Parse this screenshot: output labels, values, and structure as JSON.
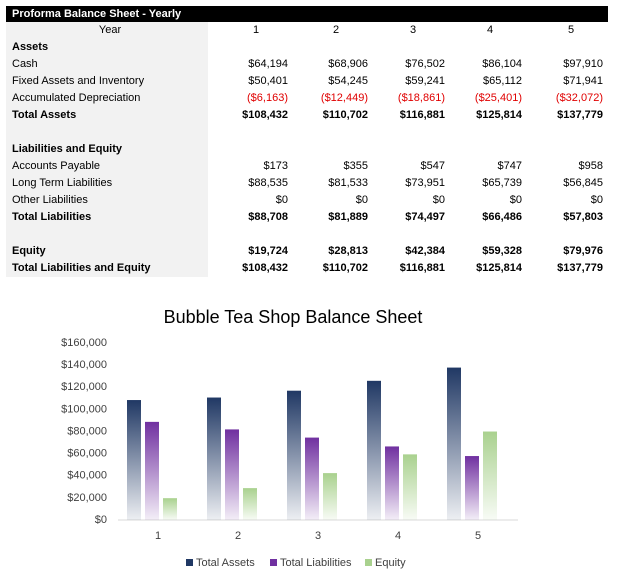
{
  "table": {
    "title": "Proforma Balance Sheet - Yearly",
    "header": [
      "Year",
      "1",
      "2",
      "3",
      "4",
      "5"
    ],
    "sections": [
      {
        "rows": [
          {
            "cells": [
              "Assets"
            ],
            "bold": true
          },
          {
            "cells": [
              "Cash",
              "$64,194",
              "$68,906",
              "$76,502",
              "$86,104",
              "$97,910"
            ]
          },
          {
            "cells": [
              "Fixed Assets and Inventory",
              "$50,401",
              "$54,245",
              "$59,241",
              "$65,112",
              "$71,941"
            ]
          },
          {
            "cells": [
              "Accumulated Depreciation",
              "($6,163)",
              "($12,449)",
              "($18,861)",
              "($25,401)",
              "($32,072)"
            ]
          },
          {
            "cells": [
              "Total Assets",
              "$108,432",
              "$110,702",
              "$116,881",
              "$125,814",
              "$137,779"
            ],
            "bold": true
          }
        ]
      },
      {
        "rows": [
          {
            "cells": [
              "Liabilities and Equity"
            ],
            "bold": true
          },
          {
            "cells": [
              "Accounts Payable",
              "$173",
              "$355",
              "$547",
              "$747",
              "$958"
            ]
          },
          {
            "cells": [
              "Long Term Liabilities",
              "$88,535",
              "$81,533",
              "$73,951",
              "$65,739",
              "$56,845"
            ]
          },
          {
            "cells": [
              "Other Liabilities",
              "$0",
              "$0",
              "$0",
              "$0",
              "$0"
            ]
          },
          {
            "cells": [
              "Total Liabilities",
              "$88,708",
              "$81,889",
              "$74,497",
              "$66,486",
              "$57,803"
            ],
            "bold": true
          }
        ]
      },
      {
        "rows": [
          {
            "cells": [
              "Equity",
              "$19,724",
              "$28,813",
              "$42,384",
              "$59,328",
              "$79,976"
            ],
            "bold": true
          },
          {
            "cells": [
              "Total Liabilities and Equity",
              "$108,432",
              "$110,702",
              "$116,881",
              "$125,814",
              "$137,779"
            ],
            "bold": true
          }
        ]
      }
    ]
  },
  "chart_data": {
    "type": "bar",
    "title": "Bubble Tea Shop Balance Sheet",
    "categories": [
      "1",
      "2",
      "3",
      "4",
      "5"
    ],
    "series": [
      {
        "name": "Total Assets",
        "color": "#203864",
        "values": [
          108432,
          110702,
          116881,
          125814,
          137779
        ]
      },
      {
        "name": "Total Liabilities",
        "color": "#7030a0",
        "values": [
          88708,
          81889,
          74497,
          66486,
          57803
        ]
      },
      {
        "name": "Equity",
        "color": "#a9d18e",
        "values": [
          19724,
          28813,
          42384,
          59328,
          79976
        ]
      }
    ],
    "ylim": [
      0,
      160000
    ],
    "yticks": [
      {
        "value": 0,
        "label": "$0"
      },
      {
        "value": 20000,
        "label": "$20,000"
      },
      {
        "value": 40000,
        "label": "$40,000"
      },
      {
        "value": 60000,
        "label": "$60,000"
      },
      {
        "value": 80000,
        "label": "$80,000"
      },
      {
        "value": 100000,
        "label": "$100,000"
      },
      {
        "value": 120000,
        "label": "$120,000"
      },
      {
        "value": 140000,
        "label": "$140,000"
      },
      {
        "value": 160000,
        "label": "$160,000"
      }
    ],
    "legend": "bottom"
  }
}
